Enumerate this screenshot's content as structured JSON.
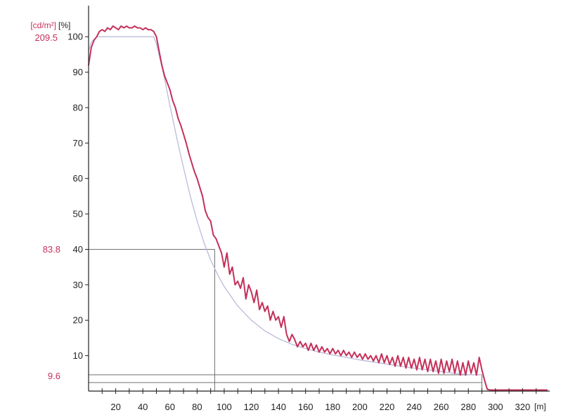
{
  "chart_data": {
    "type": "line",
    "title": "",
    "xlabel": "[m]",
    "ylabel_left": "[cd/m²]",
    "ylabel_right": "[%]",
    "xlim": [
      0,
      340
    ],
    "ylim": [
      0,
      106
    ],
    "x_ticks": [
      20,
      40,
      60,
      80,
      100,
      120,
      140,
      160,
      180,
      200,
      220,
      240,
      260,
      280,
      300,
      320
    ],
    "y_ticks": [
      10,
      20,
      30,
      40,
      50,
      60,
      70,
      80,
      90,
      100
    ],
    "luminance_labels": [
      {
        "text": "209.5",
        "y": 100
      },
      {
        "text": "83.8",
        "y": 40
      },
      {
        "text": "9.6",
        "y": 4.6
      }
    ],
    "reference_lines": [
      {
        "x": 93,
        "y": 40
      },
      {
        "x": 290,
        "y": 4.6
      },
      {
        "x": 290,
        "y": 2.4
      }
    ],
    "series": [
      {
        "role": "measured",
        "x": [
          0,
          2,
          4,
          6,
          8,
          10,
          12,
          14,
          16,
          18,
          20,
          22,
          24,
          26,
          28,
          30,
          32,
          34,
          36,
          38,
          40,
          42,
          44,
          46,
          48,
          50,
          52,
          54,
          56,
          58,
          60,
          62,
          64,
          66,
          68,
          70,
          72,
          74,
          76,
          78,
          80,
          82,
          84,
          86,
          88,
          90,
          92,
          94,
          96,
          98,
          100,
          102,
          104,
          106,
          108,
          110,
          112,
          114,
          116,
          118,
          120,
          122,
          124,
          126,
          128,
          130,
          132,
          134,
          136,
          138,
          140,
          142,
          144,
          146,
          148,
          150,
          152,
          154,
          156,
          158,
          160,
          162,
          164,
          166,
          168,
          170,
          172,
          174,
          176,
          178,
          180,
          182,
          184,
          186,
          188,
          190,
          192,
          194,
          196,
          198,
          200,
          202,
          204,
          206,
          208,
          210,
          212,
          214,
          216,
          218,
          220,
          222,
          224,
          226,
          228,
          230,
          232,
          234,
          236,
          238,
          240,
          242,
          244,
          246,
          248,
          250,
          252,
          254,
          256,
          258,
          260,
          262,
          264,
          266,
          268,
          270,
          272,
          274,
          276,
          278,
          280,
          282,
          284,
          286,
          288,
          290,
          292,
          294,
          296,
          298,
          300,
          302,
          304,
          306,
          308,
          310,
          312,
          314,
          316,
          318,
          320,
          322,
          324,
          326,
          328,
          330,
          332,
          334,
          336,
          338
        ],
        "y": [
          92,
          97,
          99,
          100,
          101.5,
          102,
          101.5,
          102.5,
          102,
          103,
          102.5,
          102,
          103,
          102.5,
          103,
          102.5,
          102.5,
          103,
          102.5,
          102.5,
          102,
          102.5,
          102,
          102,
          101.5,
          100,
          96,
          92,
          89,
          87,
          85,
          82,
          80,
          77,
          75,
          72.5,
          70,
          67,
          64.5,
          62,
          60,
          57.5,
          55,
          51,
          49,
          48,
          44,
          43,
          41,
          39,
          35,
          39,
          33,
          35,
          30,
          31,
          29,
          32,
          26,
          30,
          28,
          25,
          28.5,
          23,
          25,
          22.5,
          24,
          20,
          22.5,
          20,
          21,
          18,
          21,
          16,
          14,
          16,
          14.5,
          12.5,
          14,
          12.5,
          13.5,
          11.5,
          13.5,
          11.5,
          13,
          11,
          12.5,
          11,
          12,
          10.5,
          12,
          10.5,
          11.5,
          10,
          11.5,
          10,
          11,
          9.5,
          11,
          9.5,
          10.5,
          9,
          10.5,
          9,
          10,
          8.5,
          10,
          8,
          10.5,
          8,
          10,
          7.5,
          9.5,
          7,
          10,
          7,
          9.5,
          6.5,
          9.5,
          6.5,
          9,
          6,
          9.5,
          6,
          9,
          5.5,
          9,
          5.5,
          8.5,
          5,
          9,
          5,
          8.5,
          5.5,
          9,
          5,
          8.5,
          4.5,
          8,
          4.5,
          8.5,
          5,
          8,
          4.5,
          9.5,
          6,
          3,
          0.5,
          0.3,
          0.3,
          0.3,
          0.3,
          0.3,
          0.3,
          0.3,
          0.3,
          0.3,
          0.3,
          0.3,
          0.3,
          0.3,
          0.3,
          0.3,
          0.3,
          0.3,
          0.3,
          0.3,
          0.3,
          0.3,
          0.3
        ],
        "color": "#c4305a"
      },
      {
        "role": "requirement",
        "x": [
          0,
          2,
          6,
          10,
          20,
          30,
          40,
          48,
          50,
          55,
          60,
          65,
          70,
          75,
          80,
          85,
          90,
          95,
          100,
          110,
          120,
          130,
          140,
          150,
          160,
          170,
          180,
          190,
          200,
          210,
          220,
          230,
          240,
          250,
          260,
          270,
          280,
          290
        ],
        "y": [
          96,
          98.5,
          100,
          100,
          100,
          100,
          100,
          100,
          98,
          90,
          80.5,
          71.5,
          63,
          55,
          48,
          42,
          37,
          33,
          29.5,
          24,
          20,
          17,
          14.8,
          13.2,
          12,
          11,
          10.2,
          9.5,
          8.8,
          8.2,
          7.6,
          7,
          6.5,
          6,
          5.5,
          5,
          4.6,
          4.6
        ],
        "color": "#b9bcd9"
      }
    ],
    "colors": {
      "measured": "#c4305a",
      "requirement": "#b9bcd9",
      "axis": "#222222",
      "reference": "#707070",
      "luminance_text": "#c4305a"
    }
  }
}
